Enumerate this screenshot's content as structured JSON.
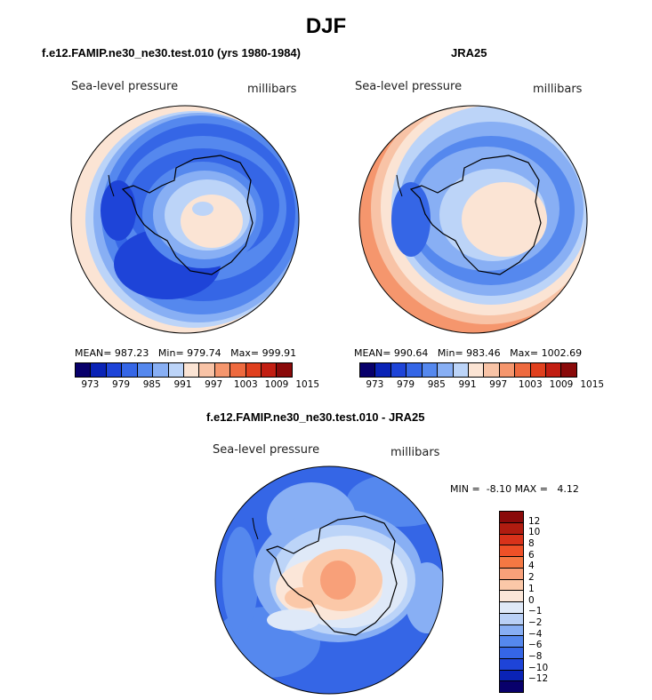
{
  "title": "DJF",
  "colors": {
    "scale": [
      "#08006b",
      "#0a23b6",
      "#1e44d8",
      "#3566e6",
      "#5588ee",
      "#88aff4",
      "#bcd4f8",
      "#fbe4d4",
      "#f8c3a6",
      "#f5966d",
      "#ee6a3f",
      "#e0401e",
      "#c21e12",
      "#8a0a0a"
    ]
  },
  "chart_data": [
    {
      "type": "polar-contour-map",
      "title": "f.e12.FAMIP.ne30_ne30.test.010 (yrs 1980-1984)",
      "variable": "Sea-level pressure",
      "units": "millibars",
      "stats": {
        "mean": "987.23",
        "min": "979.74",
        "max": "999.91",
        "mean_label": "MEAN=",
        "min_label": "Min=",
        "max_label": "Max="
      },
      "levels": [
        973,
        976,
        979,
        982,
        985,
        988,
        991,
        994,
        997,
        1000,
        1003,
        1006,
        1009,
        1012,
        1015
      ],
      "tick_labels": [
        "973",
        "979",
        "985",
        "991",
        "997",
        "1003",
        "1009",
        "1015"
      ]
    },
    {
      "type": "polar-contour-map",
      "title": "JRA25",
      "variable": "Sea-level pressure",
      "units": "millibars",
      "stats": {
        "mean": "990.64",
        "min": "983.46",
        "max": "1002.69",
        "mean_label": "MEAN=",
        "min_label": "Min=",
        "max_label": "Max="
      },
      "levels": [
        973,
        976,
        979,
        982,
        985,
        988,
        991,
        994,
        997,
        1000,
        1003,
        1006,
        1009,
        1012,
        1015
      ],
      "tick_labels": [
        "973",
        "979",
        "985",
        "991",
        "997",
        "1003",
        "1009",
        "1015"
      ]
    },
    {
      "type": "polar-contour-map",
      "title": "f.e12.FAMIP.ne30_ne30.test.010 - JRA25",
      "variable": "Sea-level pressure",
      "units": "millibars",
      "stats": {
        "min": "-8.10",
        "max": "4.12",
        "min_label": "MIN =",
        "max_label": "MAX ="
      },
      "levels": [
        12,
        10,
        8,
        6,
        4,
        2,
        1,
        0,
        -1,
        -2,
        -4,
        -6,
        -8,
        -10,
        -12
      ],
      "tick_labels": [
        "12",
        "10",
        "8",
        "6",
        "4",
        "2",
        "1",
        "0",
        "−1",
        "−2",
        "−4",
        "−6",
        "−8",
        "−10",
        "−12"
      ],
      "colors": [
        "#8a0a0a",
        "#b01c10",
        "#d8321a",
        "#ee5027",
        "#f57843",
        "#f8a079",
        "#fbc8a8",
        "#fbe6d8",
        "#dfe9f8",
        "#b9d0f6",
        "#88aff4",
        "#5588ee",
        "#3566e6",
        "#1e44d8",
        "#0a23b6",
        "#08006b"
      ]
    }
  ]
}
